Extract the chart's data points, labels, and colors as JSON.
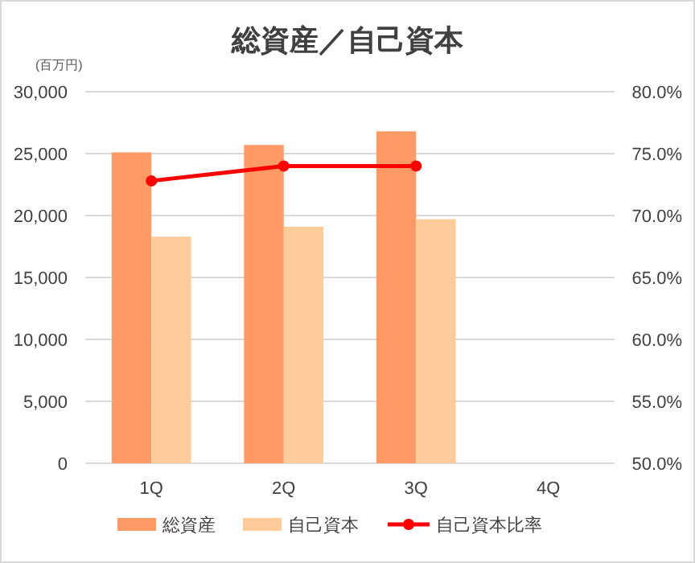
{
  "chart_data": {
    "type": "bar",
    "title": "総資産／自己資本",
    "ylabel": "(百万円)",
    "categories": [
      "1Q",
      "2Q",
      "3Q",
      "4Q"
    ],
    "series": [
      {
        "name": "総資産",
        "color": "#ff9966",
        "values": [
          25100,
          25700,
          26800,
          null
        ]
      },
      {
        "name": "自己資本",
        "color": "#ffcc99",
        "values": [
          18300,
          19100,
          19700,
          null
        ]
      },
      {
        "name": "自己資本比率",
        "color": "#ff0000",
        "type": "line",
        "axis": "y2",
        "values": [
          72.8,
          74.0,
          74.0,
          null
        ]
      }
    ],
    "ylim": [
      0,
      30000
    ],
    "yticks": [
      {
        "value": 0,
        "label": "0"
      },
      {
        "value": 5000,
        "label": "5,000"
      },
      {
        "value": 10000,
        "label": "10,000"
      },
      {
        "value": 15000,
        "label": "15,000"
      },
      {
        "value": 20000,
        "label": "20,000"
      },
      {
        "value": 25000,
        "label": "25,000"
      },
      {
        "value": 30000,
        "label": "30,000"
      }
    ],
    "y2lim": [
      50,
      80
    ],
    "y2ticks": [
      {
        "value": 50,
        "label": "50.0%"
      },
      {
        "value": 55,
        "label": "55.0%"
      },
      {
        "value": 60,
        "label": "60.0%"
      },
      {
        "value": 65,
        "label": "65.0%"
      },
      {
        "value": 70,
        "label": "70.0%"
      },
      {
        "value": 75,
        "label": "75.0%"
      },
      {
        "value": 80,
        "label": "80.0%"
      }
    ],
    "grid": "y",
    "legend": "bottom",
    "marker": "circle"
  }
}
